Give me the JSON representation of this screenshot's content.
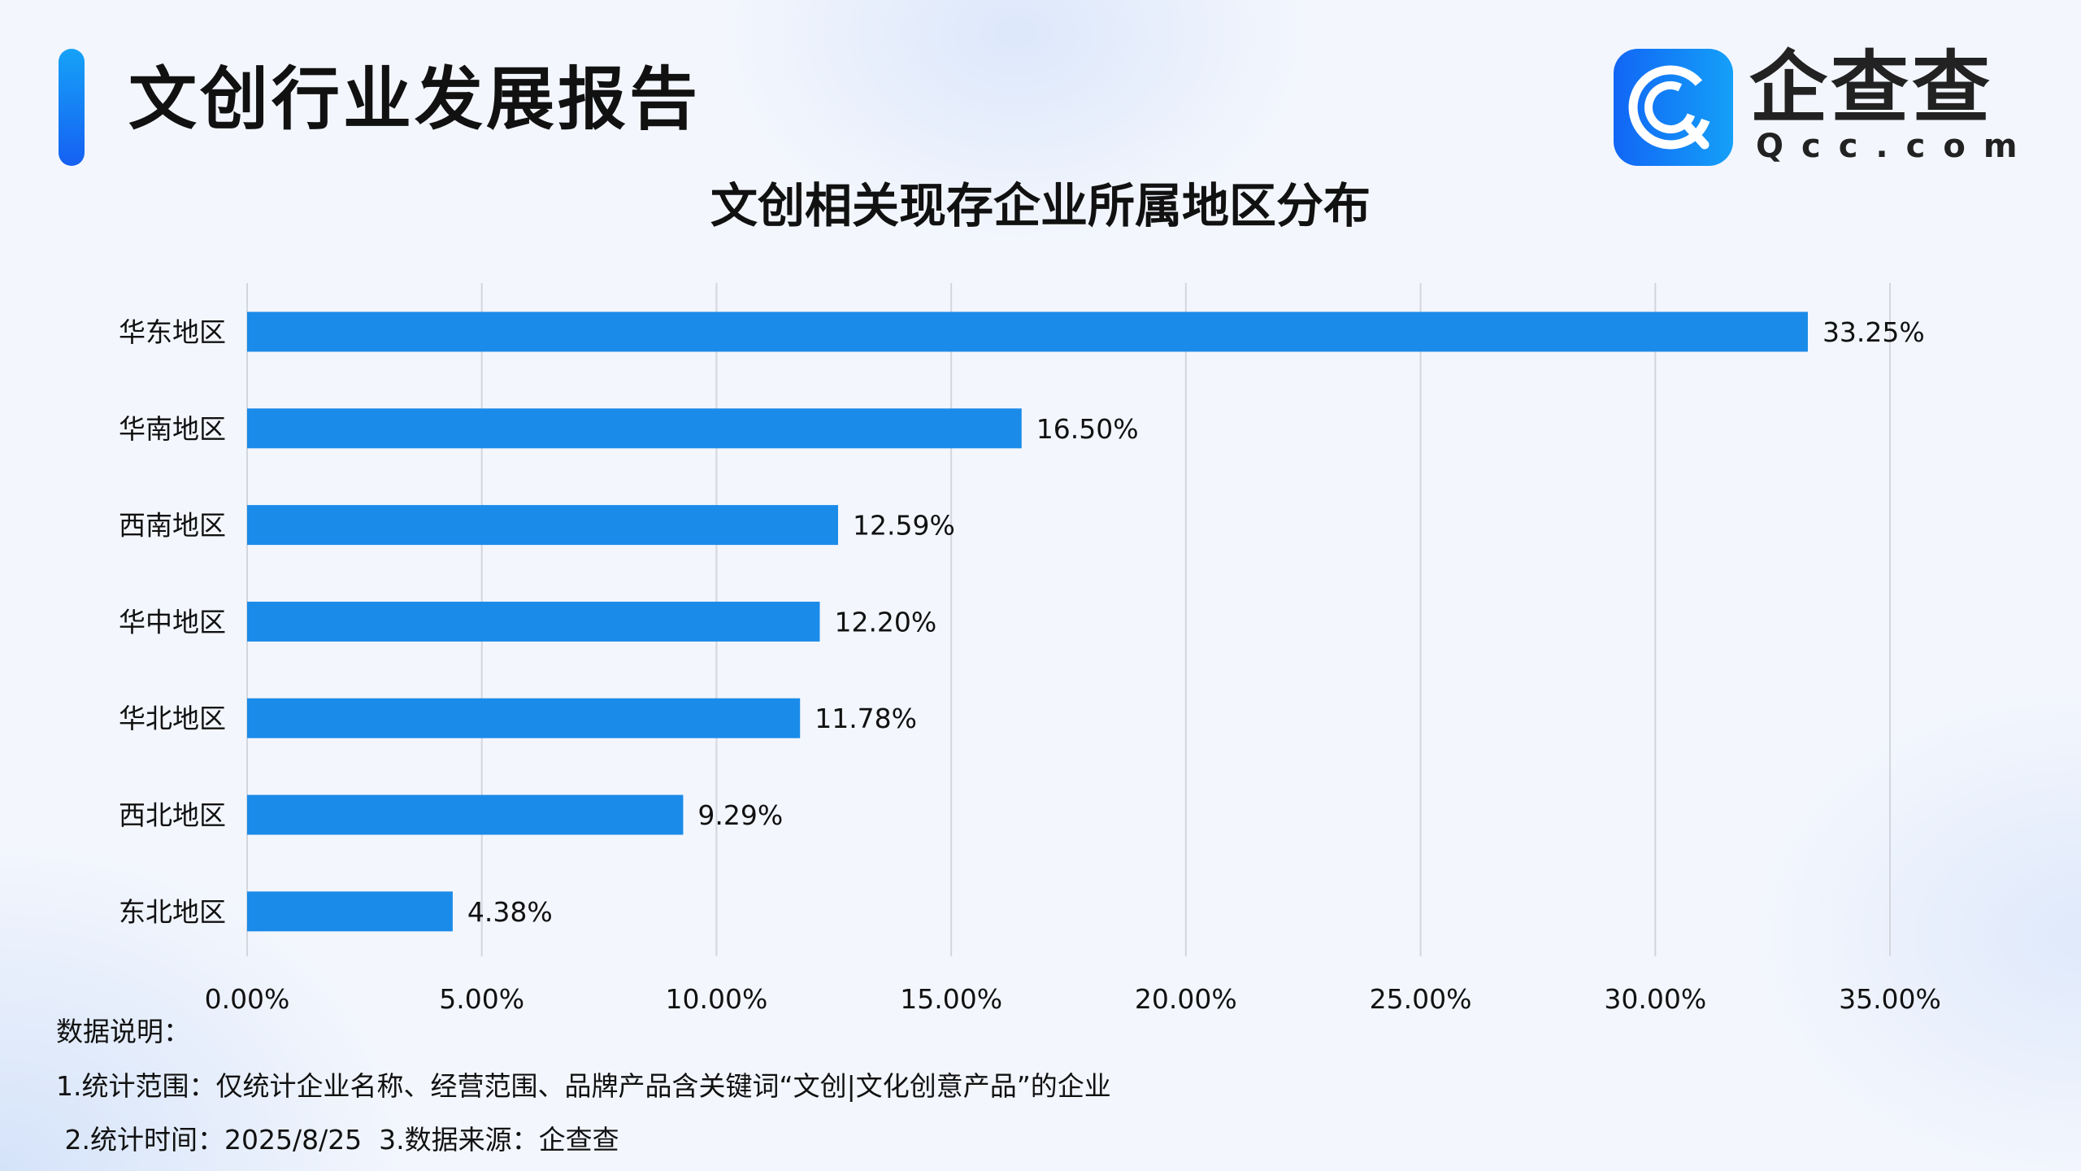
{
  "header": {
    "title": "文创行业发展报告",
    "logo_text": "企查查",
    "logo_sub": "Qcc.com"
  },
  "colors": {
    "bar": "#1a8be9",
    "accent": "#1a7af5",
    "grid": "#d3d6dd"
  },
  "chart_data": {
    "type": "bar",
    "orientation": "horizontal",
    "title": "文创相关现存企业所属地区分布",
    "categories": [
      "华东地区",
      "华南地区",
      "西南地区",
      "华中地区",
      "华北地区",
      "西北地区",
      "东北地区"
    ],
    "values": [
      33.25,
      16.5,
      12.59,
      12.2,
      11.78,
      9.29,
      4.38
    ],
    "value_labels": [
      "33.25%",
      "16.50%",
      "12.59%",
      "12.20%",
      "11.78%",
      "9.29%",
      "4.38%"
    ],
    "xlim": [
      0,
      35
    ],
    "x_ticks": [
      "0.00%",
      "5.00%",
      "10.00%",
      "15.00%",
      "20.00%",
      "25.00%",
      "30.00%",
      "35.00%"
    ],
    "grid": "vertical",
    "xlabel": "",
    "ylabel": ""
  },
  "notes": {
    "heading": "数据说明：",
    "line1": "1.统计范围：仅统计企业名称、经营范围、品牌产品含关键词“文创|文化创意产品”的企业",
    "line2": " 2.统计时间：2025/8/25  3.数据来源：企查查"
  }
}
